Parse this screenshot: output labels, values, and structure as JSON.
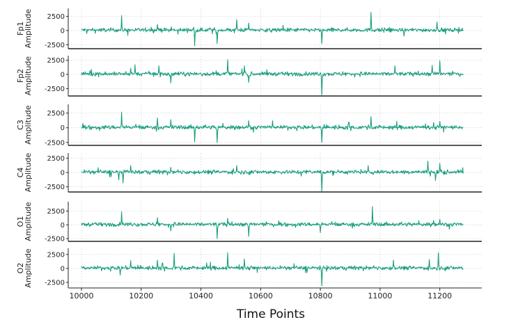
{
  "chart_data": {
    "type": "line",
    "layout": "six vertically stacked subplots sharing the x axis",
    "xlabel": "Time Points",
    "xlim": [
      10000,
      11280
    ],
    "x_ticks": [
      "10000",
      "10200",
      "10400",
      "10600",
      "10800",
      "11000",
      "11200"
    ],
    "grid": true,
    "line_color": "#1a9e7e",
    "channels": [
      {
        "name": "Fp1",
        "ylabel_lines": [
          "Fp1",
          "Amplitude"
        ],
        "ylim": [
          -3200,
          3900
        ],
        "y_ticks": [
          "2500",
          "0",
          "-2500"
        ],
        "spikes": [
          [
            10135,
            2600
          ],
          [
            10255,
            1100
          ],
          [
            10380,
            -2700
          ],
          [
            10455,
            -2300
          ],
          [
            10520,
            1900
          ],
          [
            10560,
            1300
          ],
          [
            10805,
            -2300
          ],
          [
            10970,
            3200
          ],
          [
            11080,
            -1000
          ],
          [
            11190,
            1500
          ]
        ]
      },
      {
        "name": "Fp2",
        "ylabel_lines": [
          "Fp2",
          "Amplitude"
        ],
        "ylim": [
          -3800,
          3300
        ],
        "y_ticks": [
          "2500",
          "0",
          "-2500"
        ],
        "spikes": [
          [
            10165,
            1100
          ],
          [
            10180,
            1700
          ],
          [
            10260,
            1500
          ],
          [
            10300,
            -1500
          ],
          [
            10490,
            2600
          ],
          [
            10545,
            1500
          ],
          [
            10560,
            -1400
          ],
          [
            10805,
            -3600
          ],
          [
            11050,
            1500
          ],
          [
            11175,
            1600
          ],
          [
            11200,
            2400
          ]
        ]
      },
      {
        "name": "C3",
        "ylabel_lines": [
          "C3",
          "Amplitude"
        ],
        "ylim": [
          -3000,
          4000
        ],
        "y_ticks": [
          "2500",
          "0",
          "-2500"
        ],
        "spikes": [
          [
            10135,
            2700
          ],
          [
            10255,
            1700
          ],
          [
            10300,
            1400
          ],
          [
            10380,
            -2400
          ],
          [
            10455,
            -2500
          ],
          [
            10560,
            1200
          ],
          [
            10640,
            1200
          ],
          [
            10805,
            -2500
          ],
          [
            10970,
            1900
          ],
          [
            11180,
            900
          ],
          [
            11200,
            1100
          ]
        ]
      },
      {
        "name": "C4",
        "ylabel_lines": [
          "C4",
          "Amplitude"
        ],
        "ylim": [
          -3400,
          3400
        ],
        "y_ticks": [
          "2500",
          "0",
          "-2500"
        ],
        "spikes": [
          [
            10125,
            -1300
          ],
          [
            10140,
            -1800
          ],
          [
            10165,
            1200
          ],
          [
            10300,
            900
          ],
          [
            10520,
            1200
          ],
          [
            10805,
            -3300
          ],
          [
            10960,
            1200
          ],
          [
            11160,
            2000
          ],
          [
            11200,
            1600
          ],
          [
            11185,
            -1400
          ]
        ]
      },
      {
        "name": "O1",
        "ylabel_lines": [
          "O1",
          "Amplitude"
        ],
        "ylim": [
          -3000,
          4200
        ],
        "y_ticks": [
          "2500",
          "0",
          "-2500"
        ],
        "spikes": [
          [
            10135,
            2400
          ],
          [
            10255,
            1300
          ],
          [
            10300,
            -1100
          ],
          [
            10455,
            -2500
          ],
          [
            10490,
            1200
          ],
          [
            10560,
            -2100
          ],
          [
            10800,
            -1400
          ],
          [
            10975,
            3300
          ],
          [
            11180,
            800
          ],
          [
            11200,
            1000
          ]
        ]
      },
      {
        "name": "O2",
        "ylabel_lines": [
          "O2",
          "Amplitude"
        ],
        "ylim": [
          -3500,
          3600
        ],
        "y_ticks": [
          "2500",
          "0",
          "-2500"
        ],
        "spikes": [
          [
            10130,
            -1200
          ],
          [
            10165,
            1400
          ],
          [
            10255,
            1500
          ],
          [
            10310,
            2700
          ],
          [
            10420,
            1000
          ],
          [
            10490,
            2800
          ],
          [
            10545,
            1700
          ],
          [
            10805,
            -3100
          ],
          [
            11045,
            1500
          ],
          [
            11165,
            1600
          ],
          [
            11195,
            2800
          ]
        ]
      }
    ]
  }
}
